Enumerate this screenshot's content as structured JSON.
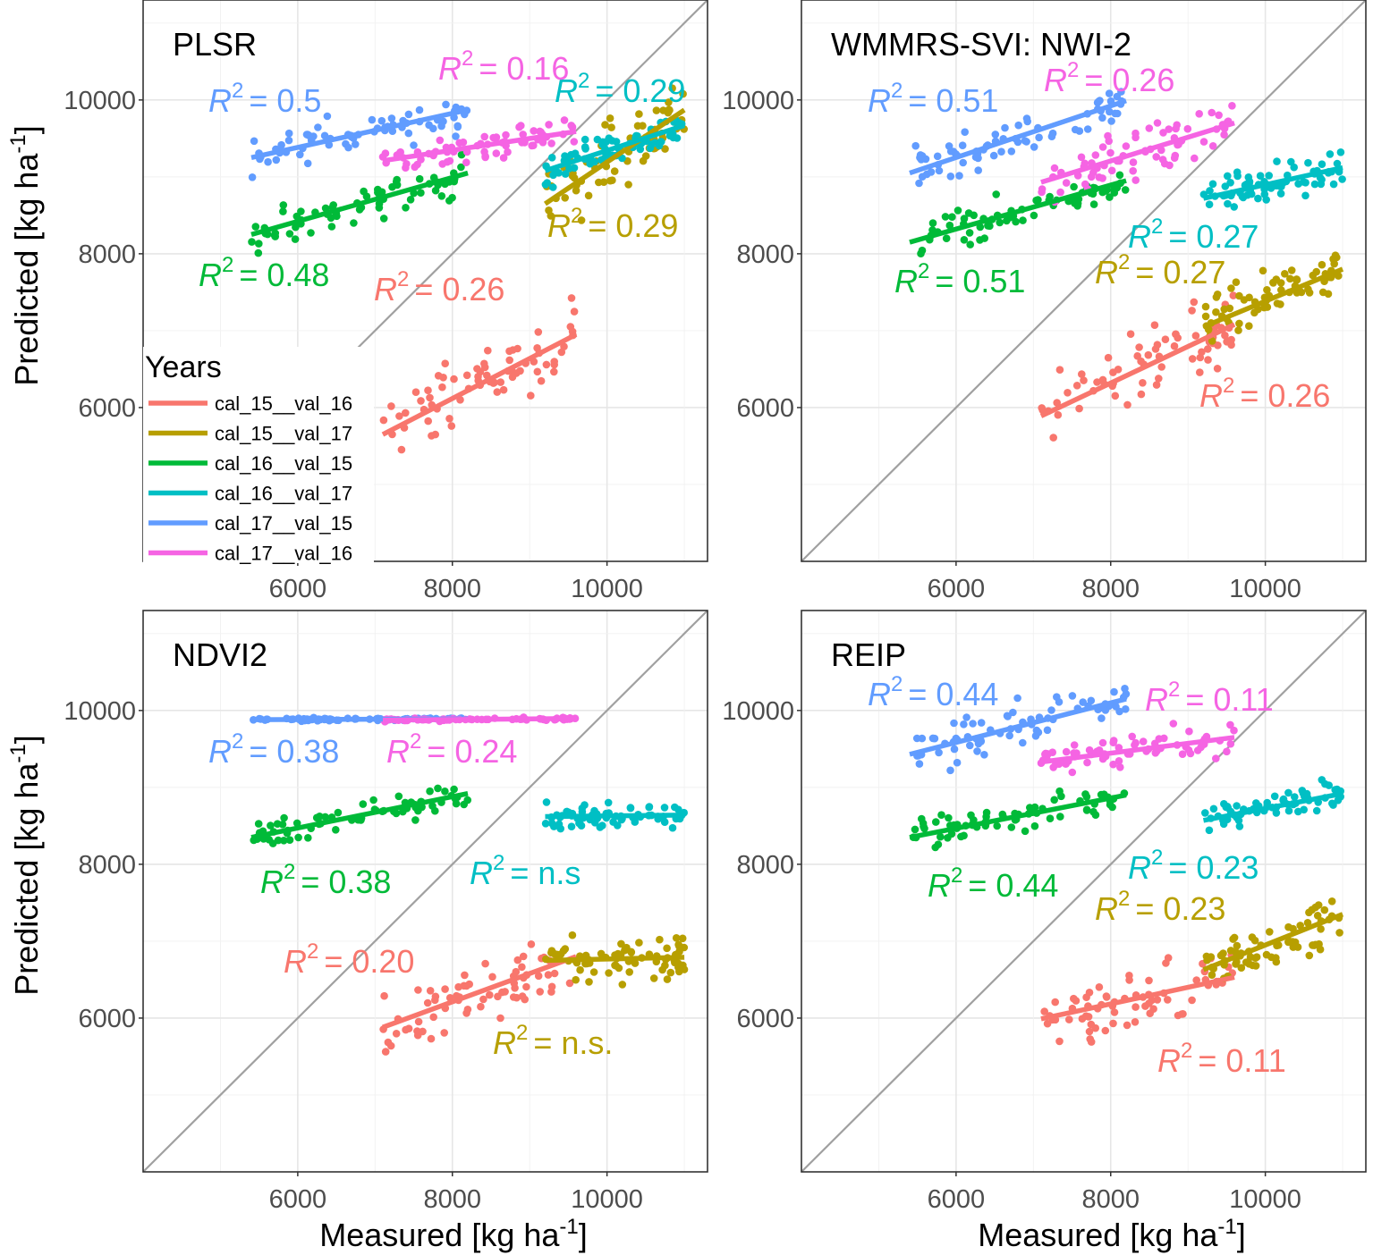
{
  "chart_data": {
    "type": "scatter",
    "xlabel": "Measured [kg ha-1]",
    "ylabel": "Predicted [kg ha-1]",
    "xlim": [
      4000,
      11300
    ],
    "ylim": [
      4000,
      11300
    ],
    "x_ticks": [
      6000,
      8000,
      10000
    ],
    "y_ticks": [
      6000,
      8000,
      10000
    ],
    "legend": {
      "title": "Years",
      "position": "left",
      "entries": [
        {
          "name": "cal_15__val_16",
          "color": "#F8766D"
        },
        {
          "name": "cal_15__val_17",
          "color": "#B79F00"
        },
        {
          "name": "cal_16__val_15",
          "color": "#00BA38"
        },
        {
          "name": "cal_16__val_17",
          "color": "#00BFC4"
        },
        {
          "name": "cal_17__val_15",
          "color": "#619CFF"
        },
        {
          "name": "cal_17__val_16",
          "color": "#F564E3"
        }
      ]
    },
    "ranges": {
      "cal_15__val_16": [
        7100,
        9600
      ],
      "cal_15__val_17": [
        9200,
        11000
      ],
      "cal_16__val_15": [
        5400,
        8200
      ],
      "cal_16__val_17": [
        9200,
        11000
      ],
      "cal_17__val_15": [
        5400,
        8200
      ],
      "cal_17__val_16": [
        7100,
        9600
      ]
    },
    "panels": [
      {
        "title": "PLSR",
        "series": [
          {
            "name": "cal_15__val_16",
            "fit": [
              5650,
              6950
            ],
            "center": 6300,
            "spread": 400,
            "r2_label": "= 0.26"
          },
          {
            "name": "cal_15__val_17",
            "fit": [
              8650,
              9870
            ],
            "center": 9100,
            "spread": 420,
            "r2_label": "= 0.29"
          },
          {
            "name": "cal_16__val_15",
            "fit": [
              8250,
              9050
            ],
            "center": 8600,
            "spread": 230,
            "r2_label": "= 0.48"
          },
          {
            "name": "cal_16__val_17",
            "fit": [
              9080,
              9670
            ],
            "center": 9350,
            "spread": 200,
            "r2_label": "= 0.29"
          },
          {
            "name": "cal_17__val_15",
            "fit": [
              9250,
              9870
            ],
            "center": 9500,
            "spread": 220,
            "r2_label": "= 0.5"
          },
          {
            "name": "cal_17__val_16",
            "fit": [
              9210,
              9590
            ],
            "center": 9380,
            "spread": 170,
            "r2_label": "= 0.16"
          }
        ]
      },
      {
        "title": "WMMRS-SVI: NWI-2",
        "series": [
          {
            "name": "cal_15__val_16",
            "fit": [
              5890,
              7080
            ],
            "center": 6500,
            "spread": 420,
            "r2_label": "= 0.26"
          },
          {
            "name": "cal_15__val_17",
            "fit": [
              7050,
              7800
            ],
            "center": 7400,
            "spread": 300,
            "r2_label": "= 0.27"
          },
          {
            "name": "cal_16__val_15",
            "fit": [
              8150,
              8950
            ],
            "center": 8550,
            "spread": 220,
            "r2_label": "= 0.51"
          },
          {
            "name": "cal_16__val_17",
            "fit": [
              8720,
              9120
            ],
            "center": 8950,
            "spread": 200,
            "r2_label": "= 0.27"
          },
          {
            "name": "cal_17__val_15",
            "fit": [
              9050,
              9990
            ],
            "center": 9500,
            "spread": 240,
            "r2_label": "= 0.51"
          },
          {
            "name": "cal_17__val_16",
            "fit": [
              8930,
              9700
            ],
            "center": 9350,
            "spread": 270,
            "r2_label": "= 0.26"
          }
        ]
      },
      {
        "title": "NDVI2",
        "series": [
          {
            "name": "cal_15__val_16",
            "fit": [
              5880,
              6800
            ],
            "center": 6300,
            "spread": 400,
            "r2_label": "= 0.20"
          },
          {
            "name": "cal_15__val_17",
            "fit": [
              6750,
              6790
            ],
            "center": 6700,
            "spread": 300,
            "r2_label": "= n.s."
          },
          {
            "name": "cal_16__val_15",
            "fit": [
              8350,
              8920
            ],
            "center": 8620,
            "spread": 180,
            "r2_label": "= 0.38"
          },
          {
            "name": "cal_16__val_17",
            "fit": [
              8620,
              8640
            ],
            "center": 8620,
            "spread": 150,
            "r2_label": "= n.s"
          },
          {
            "name": "cal_17__val_15",
            "fit": [
              9880,
              9890
            ],
            "center": 9880,
            "spread": 15,
            "r2_label": "= 0.38"
          },
          {
            "name": "cal_17__val_16",
            "fit": [
              9875,
              9895
            ],
            "center": 9885,
            "spread": 15,
            "r2_label": "= 0.24"
          }
        ]
      },
      {
        "title": "REIP",
        "series": [
          {
            "name": "cal_15__val_16",
            "fit": [
              5990,
              6530
            ],
            "center": 6250,
            "spread": 330,
            "r2_label": "= 0.11"
          },
          {
            "name": "cal_15__val_17",
            "fit": [
              6630,
              7350
            ],
            "center": 6950,
            "spread": 280,
            "r2_label": "= 0.23"
          },
          {
            "name": "cal_16__val_15",
            "fit": [
              8350,
              8900
            ],
            "center": 8600,
            "spread": 200,
            "r2_label": "= 0.44"
          },
          {
            "name": "cal_16__val_17",
            "fit": [
              8570,
              8920
            ],
            "center": 8700,
            "spread": 170,
            "r2_label": "= 0.23"
          },
          {
            "name": "cal_17__val_15",
            "fit": [
              9430,
              10150
            ],
            "center": 9750,
            "spread": 240,
            "r2_label": "= 0.44"
          },
          {
            "name": "cal_17__val_16",
            "fit": [
              9330,
              9650
            ],
            "center": 9480,
            "spread": 180,
            "r2_label": "= 0.11"
          }
        ]
      }
    ]
  }
}
